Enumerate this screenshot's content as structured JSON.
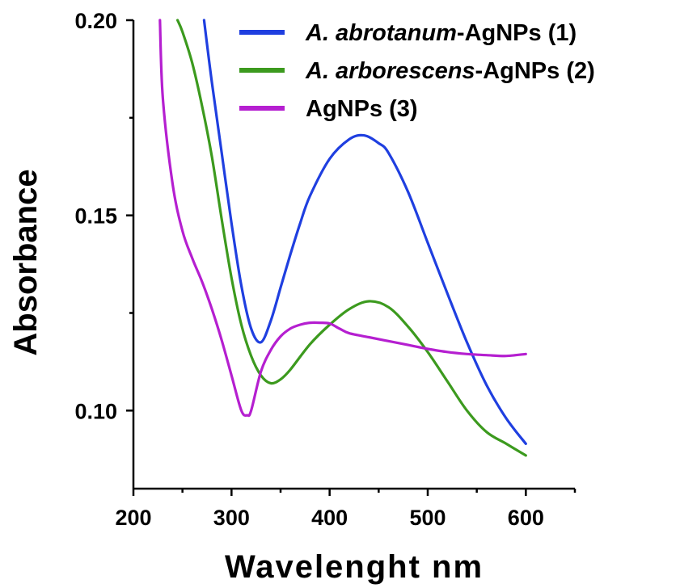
{
  "chart_data": {
    "type": "line",
    "xlabel": "Wavelenght nm",
    "ylabel": "Absorbance",
    "xlim": [
      200,
      650
    ],
    "ylim": [
      0.08,
      0.2
    ],
    "xticks": [
      200,
      300,
      400,
      500,
      600
    ],
    "xtick_labels": [
      "200",
      "300",
      "400",
      "500",
      "600"
    ],
    "yticks": [
      0.1,
      0.15,
      0.2
    ],
    "ytick_labels": [
      "0.10",
      "0.15",
      "0.20"
    ],
    "legend_position": "top-right",
    "grid": false,
    "series": [
      {
        "name": "A. abrotanum-AgNPs (1)",
        "name_italic": "A. abrotanum",
        "name_rest": "-AgNPs (1)",
        "color": "#1f3fe0",
        "x": [
          272,
          280,
          290,
          300,
          310,
          320,
          330,
          340,
          350,
          360,
          370,
          380,
          400,
          420,
          435,
          450,
          460,
          480,
          500,
          520,
          540,
          560,
          580,
          600
        ],
        "y": [
          0.2,
          0.184,
          0.166,
          0.148,
          0.132,
          0.121,
          0.1175,
          0.123,
          0.1315,
          0.14,
          0.148,
          0.155,
          0.1645,
          0.1695,
          0.1705,
          0.1685,
          0.166,
          0.156,
          0.143,
          0.13,
          0.1175,
          0.1065,
          0.098,
          0.0915
        ]
      },
      {
        "name": "A. arborescens-AgNPs (2)",
        "name_italic": "A. arborescens",
        "name_rest": "-AgNPs (2)",
        "color": "#3c9a1e",
        "x": [
          245,
          250,
          260,
          270,
          280,
          290,
          300,
          310,
          320,
          330,
          340,
          350,
          360,
          380,
          400,
          420,
          440,
          460,
          480,
          500,
          520,
          540,
          560,
          580,
          600
        ],
        "y": [
          0.2,
          0.197,
          0.189,
          0.178,
          0.165,
          0.149,
          0.134,
          0.122,
          0.114,
          0.109,
          0.107,
          0.108,
          0.1105,
          0.117,
          0.122,
          0.126,
          0.128,
          0.1265,
          0.1215,
          0.115,
          0.1075,
          0.1,
          0.0945,
          0.0915,
          0.0885
        ]
      },
      {
        "name": "AgNPs (3)",
        "color": "#b51fd0",
        "x": [
          227,
          230,
          240,
          250,
          260,
          270,
          280,
          290,
          300,
          310,
          316,
          320,
          330,
          340,
          350,
          360,
          370,
          380,
          390,
          400,
          410,
          420,
          440,
          460,
          480,
          500,
          520,
          540,
          560,
          580,
          600
        ],
        "y": [
          0.2,
          0.18,
          0.158,
          0.146,
          0.139,
          0.133,
          0.126,
          0.118,
          0.109,
          0.1,
          0.0988,
          0.1,
          0.11,
          0.1155,
          0.119,
          0.121,
          0.122,
          0.1225,
          0.1225,
          0.1223,
          0.121,
          0.1198,
          0.1188,
          0.1178,
          0.1168,
          0.1158,
          0.115,
          0.1145,
          0.1142,
          0.114,
          0.1145
        ]
      }
    ]
  }
}
